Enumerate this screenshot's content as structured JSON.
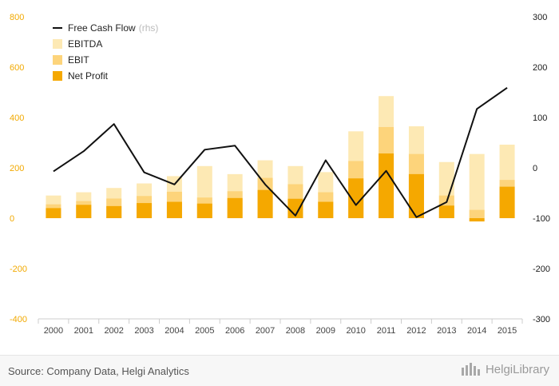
{
  "chart_data": {
    "type": "bar",
    "categories": [
      "2000",
      "2001",
      "2002",
      "2003",
      "2004",
      "2005",
      "2006",
      "2007",
      "2008",
      "2009",
      "2010",
      "2011",
      "2012",
      "2013",
      "2014",
      "2015"
    ],
    "series": [
      {
        "name": "EBITDA",
        "kind": "bar",
        "axis": "left",
        "color": "#fde9b4",
        "values": [
          90,
          103,
          120,
          138,
          167,
          207,
          175,
          230,
          207,
          183,
          345,
          485,
          365,
          223,
          255,
          292
        ]
      },
      {
        "name": "EBIT",
        "kind": "bar",
        "axis": "left",
        "color": "#fdd47b",
        "values": [
          55,
          68,
          78,
          88,
          105,
          82,
          107,
          160,
          135,
          103,
          227,
          362,
          255,
          90,
          33,
          152
        ]
      },
      {
        "name": "Net Profit",
        "kind": "bar",
        "axis": "left",
        "color": "#f5a800",
        "values": [
          40,
          53,
          48,
          60,
          65,
          58,
          80,
          112,
          77,
          65,
          158,
          257,
          175,
          50,
          -13,
          125
        ]
      },
      {
        "name": "Free Cash Flow",
        "kind": "line",
        "axis": "right",
        "color": "#111111",
        "values": [
          -7,
          33,
          87,
          -9,
          -33,
          36,
          44,
          -33,
          -95,
          15,
          -74,
          -6,
          -98,
          -68,
          117,
          159
        ]
      }
    ],
    "legend": [
      {
        "label": "Free Cash Flow",
        "note": "(rhs)",
        "marker": "line",
        "color": "#111111"
      },
      {
        "label": "EBITDA",
        "marker": "box",
        "color": "#fde9b4"
      },
      {
        "label": "EBIT",
        "marker": "box",
        "color": "#fdd47b"
      },
      {
        "label": "Net Profit",
        "marker": "box",
        "color": "#f5a800"
      }
    ],
    "legend_position": "top-left",
    "y_left": {
      "ylim": [
        -400,
        800
      ],
      "ticks": [
        800,
        600,
        400,
        200,
        0,
        -200,
        -400
      ],
      "color": "#f2a900"
    },
    "y_right": {
      "ylim": [
        -300,
        300
      ],
      "ticks": [
        300,
        200,
        100,
        0,
        -100,
        -200,
        -300
      ],
      "color": "#1a1a1a"
    },
    "grid": false
  },
  "footer": {
    "source": "Source: Company Data, Helgi Analytics",
    "brand": "HelgiLibrary"
  }
}
